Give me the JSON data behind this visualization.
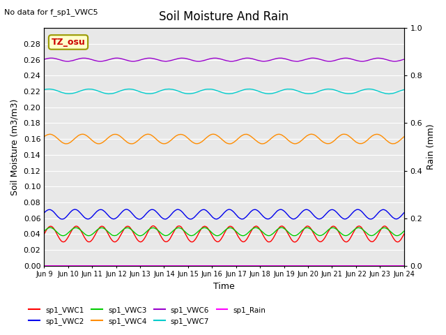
{
  "title": "Soil Moisture And Rain",
  "top_left_text": "No data for f_sp1_VWC5",
  "annotation_text": "TZ_osu",
  "xlabel": "Time",
  "ylabel_left": "Soil Moisture (m3/m3)",
  "ylabel_right": "Rain (mm)",
  "ylim_left": [
    0.0,
    0.3
  ],
  "ylim_right": [
    0.0,
    1.0
  ],
  "background_color": "#e8e8e8",
  "figure_color": "#ffffff",
  "x_tick_labels": [
    "Jun 9",
    "Jun 10",
    "Jun 11",
    "Jun 12",
    "Jun 13",
    "Jun 14",
    "Jun 15",
    "Jun 16",
    "Jun 17",
    "Jun 18",
    "Jun 19",
    "Jun 20",
    "Jun 21",
    "Jun 22",
    "Jun 23",
    "Jun 24"
  ],
  "series": [
    {
      "name": "sp1_VWC1",
      "color": "#ff0000",
      "base": 0.04,
      "amp": 0.01,
      "freq": 14.0,
      "phase": 0.0,
      "axis": "left"
    },
    {
      "name": "sp1_VWC2",
      "color": "#0000ee",
      "base": 0.065,
      "amp": 0.006,
      "freq": 14.0,
      "phase": 0.3,
      "axis": "left"
    },
    {
      "name": "sp1_VWC3",
      "color": "#00cc00",
      "base": 0.043,
      "amp": 0.005,
      "freq": 14.0,
      "phase": 0.1,
      "axis": "left"
    },
    {
      "name": "sp1_VWC4",
      "color": "#ff8c00",
      "base": 0.16,
      "amp": 0.006,
      "freq": 11.0,
      "phase": 0.5,
      "axis": "left"
    },
    {
      "name": "sp1_VWC6",
      "color": "#9900cc",
      "base": 0.26,
      "amp": 0.002,
      "freq": 11.0,
      "phase": 0.2,
      "axis": "left"
    },
    {
      "name": "sp1_VWC7",
      "color": "#00cccc",
      "base": 0.22,
      "amp": 0.003,
      "freq": 9.0,
      "phase": 0.8,
      "axis": "left"
    },
    {
      "name": "sp1_Rain",
      "color": "#ff00ff",
      "base": 0.0,
      "amp": 0.0,
      "freq": 0.0,
      "phase": 0.0,
      "axis": "right"
    }
  ],
  "legend_entries": [
    {
      "label": "sp1_VWC1",
      "color": "#ff0000"
    },
    {
      "label": "sp1_VWC2",
      "color": "#0000ee"
    },
    {
      "label": "sp1_VWC3",
      "color": "#00cc00"
    },
    {
      "label": "sp1_VWC4",
      "color": "#ff8c00"
    },
    {
      "label": "sp1_VWC6",
      "color": "#9900cc"
    },
    {
      "label": "sp1_VWC7",
      "color": "#00cccc"
    },
    {
      "label": "sp1_Rain",
      "color": "#ff00ff"
    }
  ]
}
